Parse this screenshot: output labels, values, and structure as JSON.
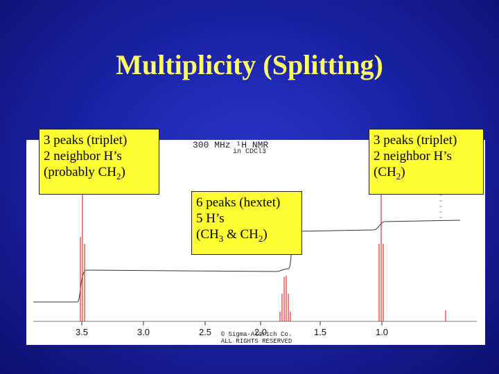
{
  "slide": {
    "title": "Multiplicity (Splitting)"
  },
  "spectrum": {
    "header_line1": "300 MHz ¹H NMR",
    "header_line2": "in CDCl3",
    "x_axis_ticks": [
      "3.5",
      "3.0",
      "2.5",
      "2.0",
      "1.5",
      "1.0"
    ],
    "copyright_line1": "© Sigma-Aldrich Co.",
    "copyright_line2": "ALL RIGHTS RESERVED",
    "peak_color": "#e03030",
    "integral_color": "#333333"
  },
  "callouts": {
    "left": {
      "line1": "3 peaks (triplet)",
      "line2": "2 neighbor H’s",
      "line3_prefix": "(probably CH",
      "line3_sub": "2",
      "line3_suffix": ")"
    },
    "middle": {
      "line1": "6 peaks (hextet)",
      "line2": "5 H’s",
      "line3_prefix": "(CH",
      "line3_sub1": "3",
      "line3_mid": " & CH",
      "line3_sub2": "2",
      "line3_suffix": ")"
    },
    "right": {
      "line1": "3 peaks (triplet)",
      "line2": "2 neighbor H’s",
      "line3_prefix": "(CH",
      "line3_sub": "2",
      "line3_suffix": ")"
    },
    "background_color": "#ffff33"
  }
}
